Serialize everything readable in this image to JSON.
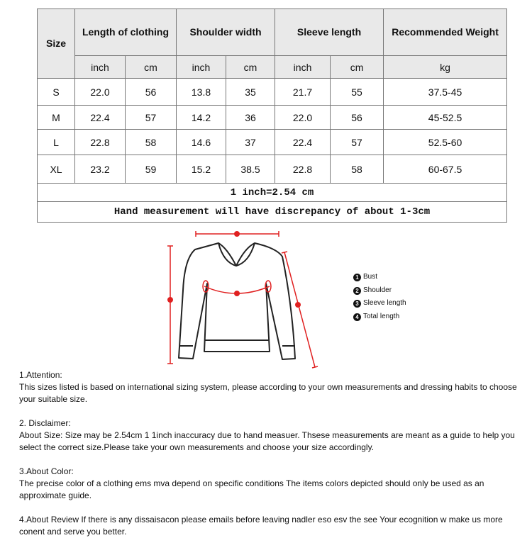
{
  "table": {
    "headers": {
      "size": "Size",
      "length": "Length of clothing",
      "shoulder": "Shoulder width",
      "sleeve": "Sleeve length",
      "weight": "Recommended Weight"
    },
    "units": [
      "inch",
      "cm",
      "inch",
      "cm",
      "inch",
      "cm",
      "kg"
    ],
    "rows": [
      [
        "S",
        "22.0",
        "56",
        "13.8",
        "35",
        "21.7",
        "55",
        "37.5-45"
      ],
      [
        "M",
        "22.4",
        "57",
        "14.2",
        "36",
        "22.0",
        "56",
        "45-52.5"
      ],
      [
        "L",
        "22.8",
        "58",
        "14.6",
        "37",
        "22.4",
        "57",
        "52.5-60"
      ],
      [
        "XL",
        "23.2",
        "59",
        "15.2",
        "38.5",
        "22.8",
        "58",
        "60-67.5"
      ]
    ],
    "note1": "1 inch=2.54 cm",
    "note2": "Hand measurement will have discrepancy of about 1-3cm"
  },
  "diagram": {
    "legend": [
      {
        "num": "1",
        "label": "Bust"
      },
      {
        "num": "2",
        "label": "Shoulder"
      },
      {
        "num": "3",
        "label": "Sleeve length"
      },
      {
        "num": "4",
        "label": "Total length"
      }
    ],
    "measure_color": "#e02020"
  },
  "notes": [
    {
      "title": "1.Attention:",
      "body": "This sizes listed is based on international sizing system, please according to your own measurements and dressing   habits to choose your suitable size."
    },
    {
      "title": "2. Disclaimer:",
      "body": "About Size: Size may be 2.54cm 1 1inch inaccuracy due to hand measuer. Thsese measurements are meant as a   guide to help you select the correct size.Please take your own measurements and choose your size accordingly."
    },
    {
      "title": "3.About Color:",
      "body": "The precise color of a clothing ems mva depend on specific conditions The items colors depicted should only be   used as an approximate guide."
    },
    {
      "title": "",
      "body": "4.About Review If there is any dissaisacon please emails before leaving nadler eso esv the see Your ecognition w   make us more conent and serve you better."
    }
  ]
}
